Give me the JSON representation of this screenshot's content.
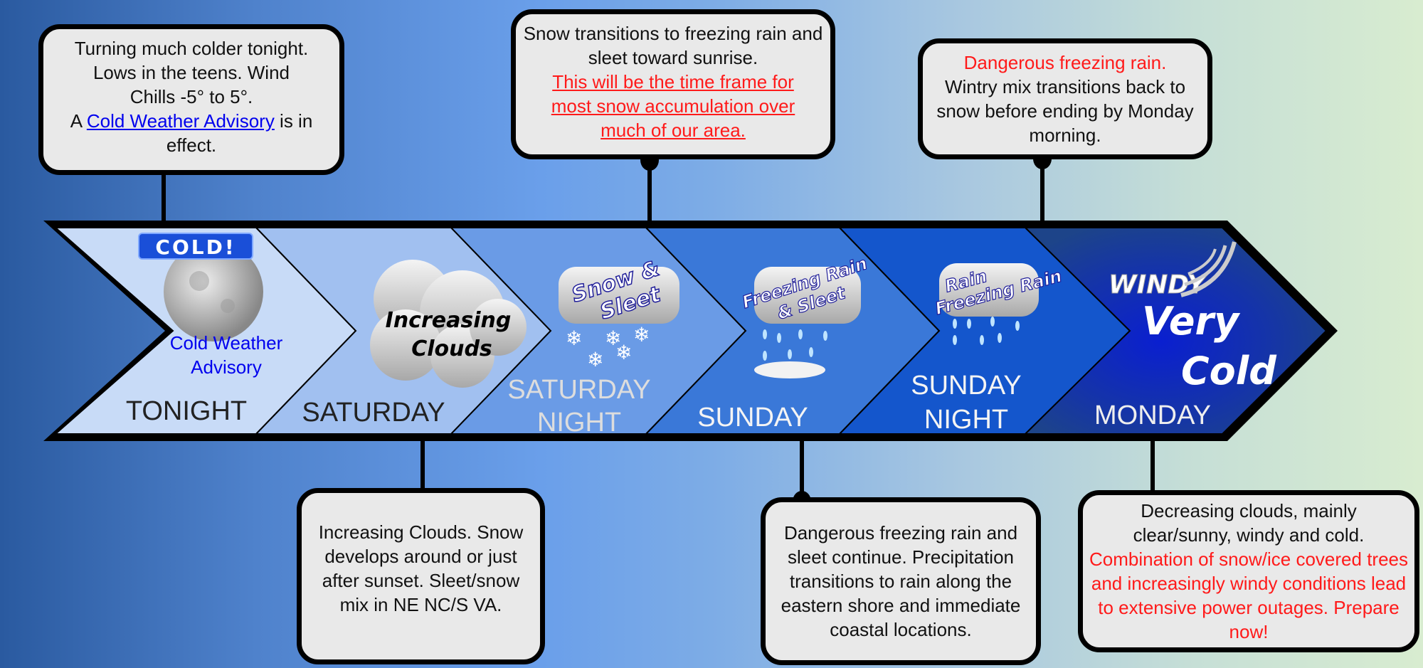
{
  "colors": {
    "segments": [
      "#c8dbf7",
      "#a1c0f0",
      "#6a9be6",
      "#3a78d8",
      "#1456cc",
      "#1d4489"
    ],
    "alert_red": "#ff1a1a",
    "link_blue": "#0000ee"
  },
  "timeline": [
    {
      "label_lines": [
        "TONIGHT"
      ],
      "icon": "moon-cold-icon",
      "icon_text": "COLD!",
      "caption_lines": [
        "Cold Weather",
        "Advisory"
      ]
    },
    {
      "label_lines": [
        "SATURDAY"
      ],
      "icon": "increasing-clouds-icon",
      "icon_text_lines": [
        "Increasing",
        "Clouds"
      ]
    },
    {
      "label_lines": [
        "SATURDAY",
        "NIGHT"
      ],
      "icon": "snow-sleet-icon",
      "icon_text_lines": [
        "Snow &",
        "Sleet"
      ]
    },
    {
      "label_lines": [
        "SUNDAY"
      ],
      "icon": "freezing-rain-sleet-icon",
      "icon_text_lines": [
        "Freezing Rain",
        "& Sleet"
      ]
    },
    {
      "label_lines": [
        "SUNDAY",
        "NIGHT"
      ],
      "icon": "rain-freezing-rain-icon",
      "icon_text_lines": [
        "Rain",
        "Freezing Rain"
      ]
    },
    {
      "label_lines": [
        "MONDAY"
      ],
      "icon": "windy-very-cold-icon",
      "icon_text": "WINDY",
      "icon_text_lines": [
        "Very",
        "Cold"
      ]
    }
  ],
  "callouts": {
    "tonight": {
      "lines": [
        "Turning much colder tonight.",
        "Lows in the teens. Wind",
        "Chills -5° to 5°."
      ],
      "pre": "A ",
      "link": "Cold Weather Advisory",
      "post": " is in effect."
    },
    "saturday": {
      "text": "Increasing Clouds. Snow develops around or just after sunset. Sleet/snow mix in NE NC/S VA."
    },
    "saturday_night": {
      "text": "Snow transitions to freezing rain and sleet toward sunrise.",
      "alert": "This will be the time frame for most snow accumulation over much of our area."
    },
    "sunday": {
      "text": "Dangerous freezing rain and sleet continue. Precipitation transitions to rain along the eastern shore and immediate coastal locations."
    },
    "sunday_night": {
      "alert": "Dangerous freezing rain.",
      "text": "Wintry mix transitions back to snow before ending by Monday morning."
    },
    "monday": {
      "text": "Decreasing clouds, mainly clear/sunny, windy and cold.",
      "alert": "Combination of snow/ice covered trees and increasingly windy conditions lead to extensive power outages. Prepare now!"
    }
  }
}
